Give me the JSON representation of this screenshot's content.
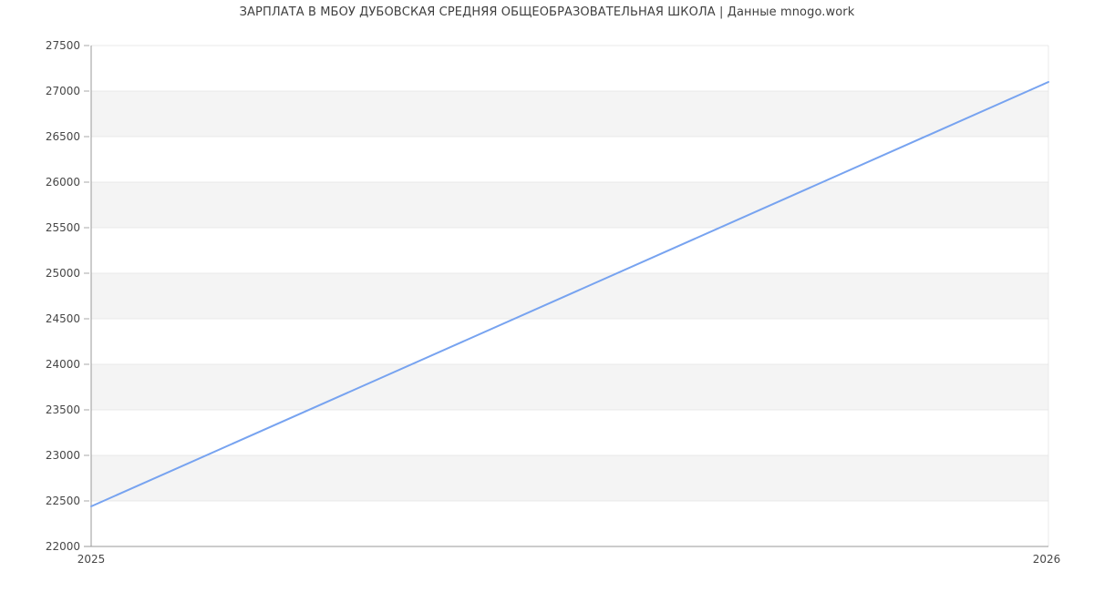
{
  "title": "ЗАРПЛАТА В МБОУ ДУБОВСКАЯ СРЕДНЯЯ ОБЩЕОБРАЗОВАТЕЛЬНАЯ ШКОЛА | Данные mnogo.work",
  "colors": {
    "line": "#77a3f0",
    "band_shaded": "#f4f4f4",
    "gridline": "#e8e8e8",
    "axis": "#999999",
    "tick_mark": "#aaaaaa",
    "tick_label": "#474747",
    "title_text": "#3f3f3f",
    "background": "#ffffff"
  },
  "chart_data": {
    "type": "line",
    "title": "ЗАРПЛАТА В МБОУ ДУБОВСКАЯ СРЕДНЯЯ ОБЩЕОБРАЗОВАТЕЛЬНАЯ ШКОЛА | Данные mnogo.work",
    "x": [
      2025,
      2026
    ],
    "series": [
      {
        "values": [
          22440,
          27100
        ]
      }
    ],
    "xlabel": "",
    "ylabel": "",
    "xlim": [
      2025,
      2026
    ],
    "ylim": [
      22000,
      27500
    ],
    "ytick_step": 500,
    "ytick_labels": [
      "22000",
      "22500",
      "23000",
      "23500",
      "24000",
      "24500",
      "25000",
      "25500",
      "26000",
      "26500",
      "27000",
      "27500"
    ],
    "xtick_labels": [
      "2025",
      "2026"
    ],
    "grid": "horizontal gridlines every 500 with alternating shaded bands",
    "legend": "none"
  }
}
